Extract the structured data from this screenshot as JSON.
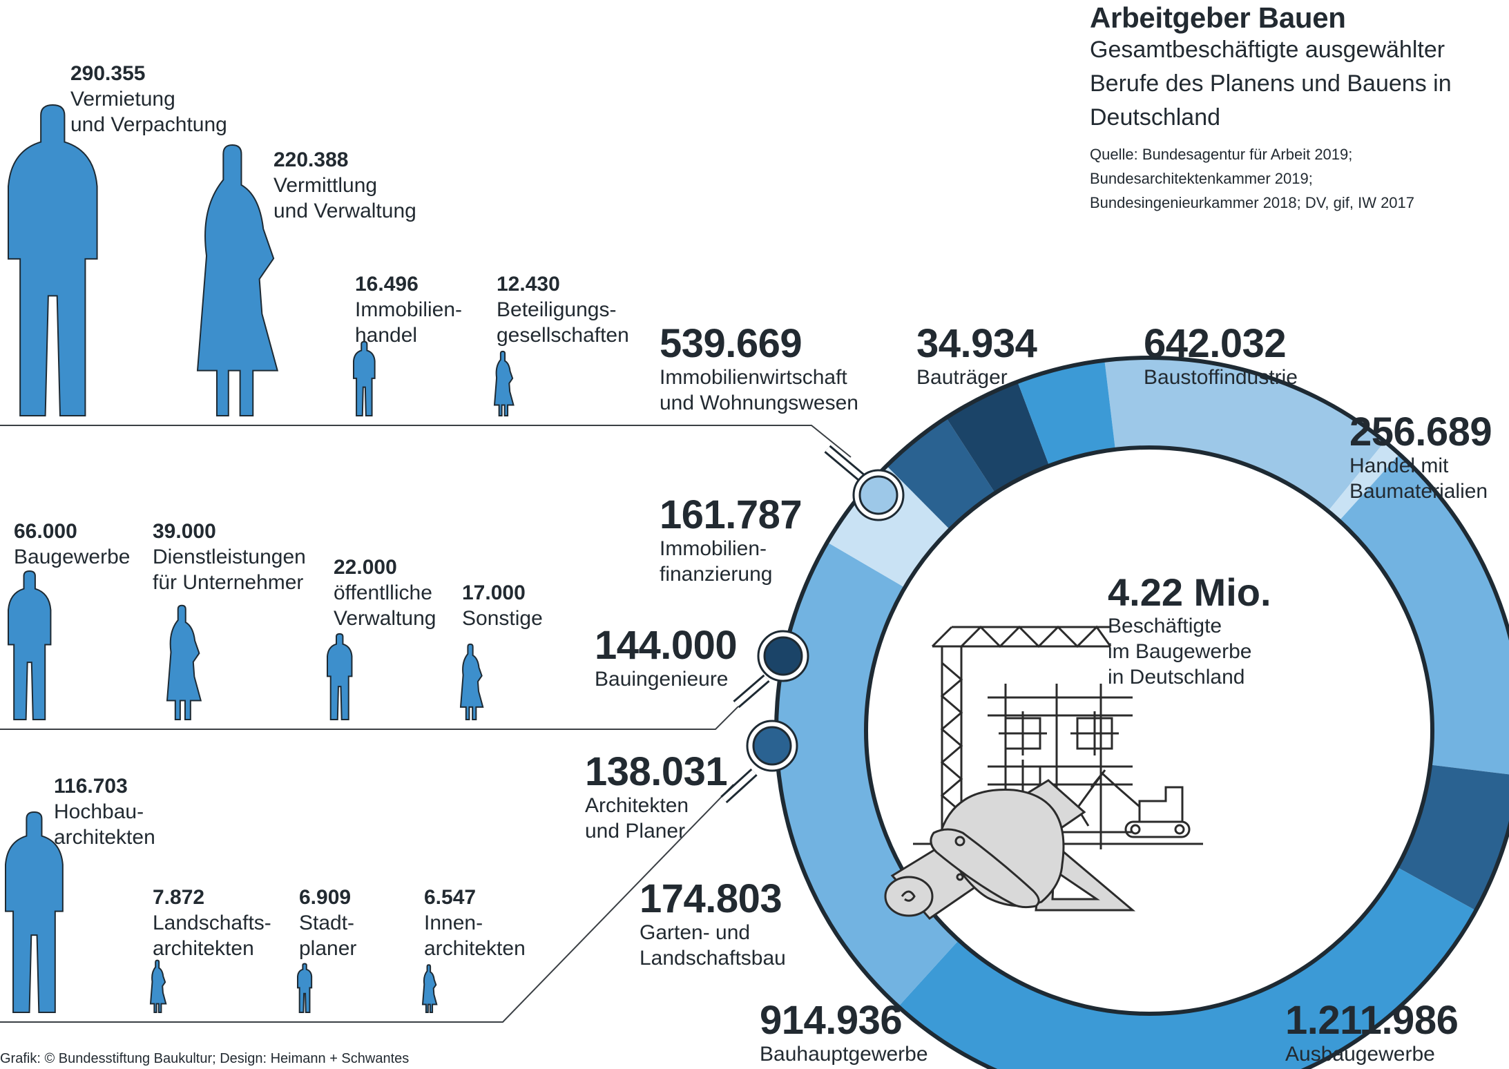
{
  "header": {
    "title": "Arbeitgeber Bauen",
    "subtitle": "Gesamtbeschäftigte ausgewählter Berufe des Planens und Bauens in Deutschland",
    "source_line1": "Quelle: Bundesagentur für Arbeit 2019;",
    "source_line2": "Bundesarchitektenkammer 2019;",
    "source_line3": "Bundesingenieurkammer 2018; DV, gif, IW 2017"
  },
  "footer": "Grafik: © Bundesstiftung Baukultur; Design: Heimann + Schwantes",
  "center": {
    "value": "4.22 Mio.",
    "label": "Beschäftigte\nim Baugewerbe\nin Deutschland"
  },
  "chart_data": {
    "type": "pie",
    "variant": "donut",
    "total_label": "4.22 Mio.",
    "segments": [
      {
        "value_label": "539.669",
        "value": 539669,
        "label": "Immobilienwirtschaft\nund Wohnungswesen",
        "color": "#9dc8e8"
      },
      {
        "value_label": "34.934",
        "value": 34934,
        "label": "Bauträger",
        "color": "#c9e2f4"
      },
      {
        "value_label": "642.032",
        "value": 642032,
        "label": "Baustoffindustrie",
        "color": "#72b3e1"
      },
      {
        "value_label": "256.689",
        "value": 256689,
        "label": "Handel mit\nBaumaterialien",
        "color": "#2a6291"
      },
      {
        "value_label": "1.211.986",
        "value": 1211986,
        "label": "Ausbaugewerbe",
        "color": "#3c9ad6"
      },
      {
        "value_label": "914.936",
        "value": 914936,
        "label": "Bauhauptgewerbe",
        "color": "#72b3e1"
      },
      {
        "value_label": "174.803",
        "value": 174803,
        "label": "Garten- und\nLandschaftsbau",
        "color": "#c9e2f4"
      },
      {
        "value_label": "138.031",
        "value": 138031,
        "label": "Architekten\nund Planer",
        "color": "#2a6291"
      },
      {
        "value_label": "144.000",
        "value": 144000,
        "label": "Bauingenieure",
        "color": "#1b4468"
      },
      {
        "value_label": "161.787",
        "value": 161787,
        "label": "Immobilien-\nfinanzierung",
        "color": "#3c9ad6"
      }
    ],
    "breakdowns": [
      {
        "of": "Immobilienwirtschaft und Wohnungswesen",
        "items": [
          {
            "value_label": "290.355",
            "value": 290355,
            "label": "Vermietung\nund Verpachtung",
            "figure": "man"
          },
          {
            "value_label": "220.388",
            "value": 220388,
            "label": "Vermittlung\nund Verwaltung",
            "figure": "woman"
          },
          {
            "value_label": "16.496",
            "value": 16496,
            "label": "Immobilien-\nhandel",
            "figure": "man"
          },
          {
            "value_label": "12.430",
            "value": 12430,
            "label": "Beteiligungs-\ngesellschaften",
            "figure": "woman"
          }
        ]
      },
      {
        "of": "Bauingenieure",
        "items": [
          {
            "value_label": "66.000",
            "value": 66000,
            "label": "Baugewerbe",
            "figure": "man"
          },
          {
            "value_label": "39.000",
            "value": 39000,
            "label": "Dienstleistungen\nfür Unternehmer",
            "figure": "woman"
          },
          {
            "value_label": "22.000",
            "value": 22000,
            "label": "öffentlliche\nVerwaltung",
            "figure": "man"
          },
          {
            "value_label": "17.000",
            "value": 17000,
            "label": "Sonstige",
            "figure": "woman"
          }
        ]
      },
      {
        "of": "Architekten und Planer",
        "items": [
          {
            "value_label": "116.703",
            "value": 116703,
            "label": "Hochbau-\narchitekten",
            "figure": "man"
          },
          {
            "value_label": "7.872",
            "value": 7872,
            "label": "Landschafts-\narchitekten",
            "figure": "woman"
          },
          {
            "value_label": "6.909",
            "value": 6909,
            "label": "Stadt-\nplaner",
            "figure": "man"
          },
          {
            "value_label": "6.547",
            "value": 6547,
            "label": "Innen-\narchitekten",
            "figure": "woman"
          }
        ]
      }
    ],
    "colors": {
      "figure": "#3d8fcc",
      "figure_outline": "#1e2a33",
      "magnifier_light": "#9dc8e8",
      "magnifier_dark": "#1b4468",
      "magnifier_mid": "#2a6291"
    }
  }
}
